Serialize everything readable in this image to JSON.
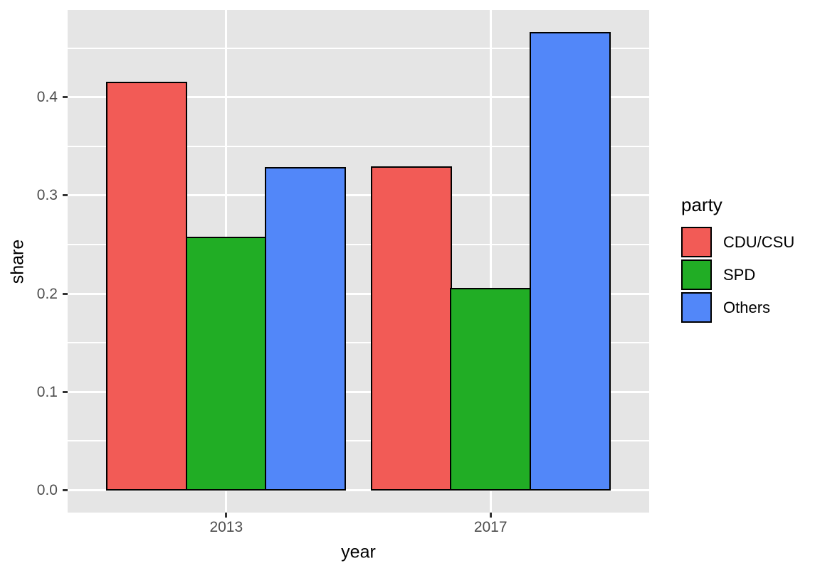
{
  "chart_data": {
    "type": "bar",
    "grouping": "dodged",
    "title": "",
    "xlabel": "year",
    "ylabel": "share",
    "legend_title": "party",
    "legend_position": "right",
    "categories": [
      "2013",
      "2017"
    ],
    "series": [
      {
        "name": "CDU/CSU",
        "color": "#F25B56",
        "values": [
          0.415,
          0.329
        ]
      },
      {
        "name": "SPD",
        "color": "#21AD25",
        "values": [
          0.257,
          0.205
        ]
      },
      {
        "name": "Others",
        "color": "#5287F9",
        "values": [
          0.328,
          0.466
        ]
      }
    ],
    "ylim": [
      -0.023,
      0.489
    ],
    "yticks": {
      "values": [
        0.0,
        0.1,
        0.2,
        0.3,
        0.4
      ],
      "labels": [
        "0.0",
        "0.1",
        "0.2",
        "0.3",
        "0.4"
      ]
    },
    "yticks_minor": [
      0.05,
      0.15,
      0.25,
      0.35,
      0.45
    ],
    "grid": true,
    "style": {
      "panel_background": "#E5E5E5",
      "grid_color": "#FFFFFF",
      "bar_outline_color": "#000000",
      "tick_mark_color": "#333333",
      "tick_label_color": "#4D4D4D"
    }
  }
}
